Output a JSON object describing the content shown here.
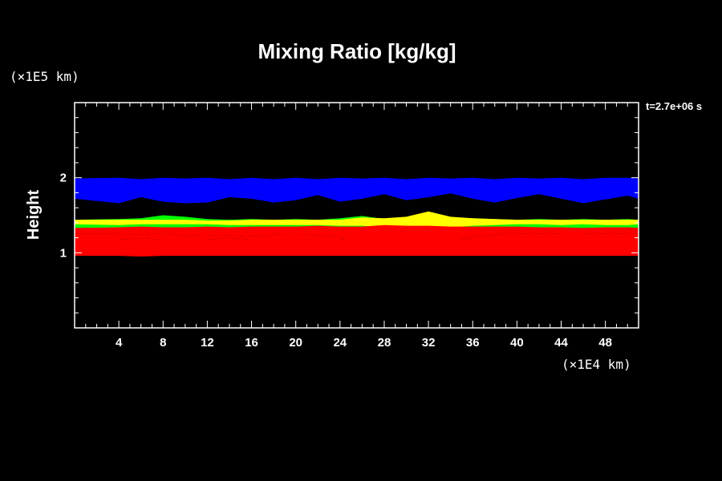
{
  "chart_data": {
    "type": "heatmap",
    "title": "Mixing Ratio [kg/kg]",
    "xlabel": "",
    "ylabel": "Height",
    "x_unit": "(×1E4 km)",
    "y_unit": "(×1E5 km)",
    "time_label": "t=2.7e+06 s",
    "xlim": [
      0,
      51
    ],
    "ylim": [
      0,
      3
    ],
    "x_ticks": [
      4,
      8,
      12,
      16,
      20,
      24,
      28,
      32,
      36,
      40,
      44,
      48
    ],
    "y_ticks": [
      1,
      2
    ],
    "x_minor_step": 1,
    "y_minor_step": 0.2,
    "colors": {
      "background": "#000000",
      "axes": "#ffffff",
      "blue": "#0000ff",
      "green": "#00ff00",
      "yellow": "#ffff00",
      "red": "#ff0000"
    },
    "bands": [
      {
        "color": "blue",
        "x": [
          0,
          4,
          6,
          8,
          10,
          12,
          14,
          16,
          18,
          20,
          22,
          24,
          26,
          28,
          30,
          32,
          34,
          36,
          38,
          40,
          42,
          44,
          46,
          48,
          50,
          51
        ],
        "top": [
          1.99,
          2.0,
          1.98,
          2.0,
          1.99,
          2.0,
          1.98,
          2.0,
          1.98,
          2.0,
          1.98,
          2.0,
          1.99,
          2.0,
          1.98,
          2.0,
          1.99,
          2.0,
          1.98,
          2.0,
          1.99,
          2.0,
          1.98,
          2.0,
          2.0,
          1.99
        ],
        "bottom": [
          1.72,
          1.66,
          1.74,
          1.68,
          1.66,
          1.67,
          1.74,
          1.72,
          1.67,
          1.7,
          1.77,
          1.68,
          1.72,
          1.78,
          1.7,
          1.74,
          1.79,
          1.72,
          1.67,
          1.73,
          1.78,
          1.72,
          1.66,
          1.71,
          1.76,
          1.72
        ]
      },
      {
        "color": "green",
        "x": [
          0,
          4,
          6,
          8,
          10,
          12,
          14,
          16,
          18,
          20,
          22,
          24,
          26,
          28,
          30,
          32,
          34,
          36,
          38,
          40,
          42,
          44,
          46,
          48,
          50,
          51
        ],
        "top": [
          1.44,
          1.45,
          1.46,
          1.5,
          1.48,
          1.45,
          1.44,
          1.45,
          1.44,
          1.45,
          1.44,
          1.46,
          1.49,
          1.45,
          1.47,
          1.5,
          1.46,
          1.46,
          1.45,
          1.44,
          1.45,
          1.44,
          1.45,
          1.44,
          1.45,
          1.44
        ],
        "bottom": [
          1.33,
          1.33,
          1.33,
          1.34,
          1.33,
          1.33,
          1.32,
          1.33,
          1.33,
          1.33,
          1.33,
          1.33,
          1.33,
          1.33,
          1.33,
          1.33,
          1.33,
          1.33,
          1.33,
          1.33,
          1.33,
          1.33,
          1.33,
          1.33,
          1.34,
          1.33
        ]
      },
      {
        "color": "yellow",
        "x": [
          0,
          4,
          6,
          8,
          10,
          12,
          14,
          16,
          18,
          20,
          22,
          24,
          26,
          28,
          30,
          32,
          34,
          36,
          38,
          40,
          42,
          44,
          46,
          48,
          50,
          51
        ],
        "top": [
          1.44,
          1.44,
          1.44,
          1.44,
          1.44,
          1.43,
          1.43,
          1.44,
          1.44,
          1.44,
          1.44,
          1.44,
          1.47,
          1.46,
          1.48,
          1.55,
          1.48,
          1.46,
          1.45,
          1.44,
          1.44,
          1.44,
          1.44,
          1.44,
          1.44,
          1.44
        ],
        "bottom": [
          1.38,
          1.37,
          1.38,
          1.38,
          1.38,
          1.38,
          1.37,
          1.37,
          1.37,
          1.37,
          1.37,
          1.36,
          1.36,
          1.34,
          1.34,
          1.33,
          1.34,
          1.36,
          1.37,
          1.38,
          1.38,
          1.37,
          1.38,
          1.37,
          1.37,
          1.38
        ]
      },
      {
        "color": "red",
        "x": [
          0,
          4,
          6,
          8,
          10,
          12,
          14,
          16,
          18,
          20,
          22,
          24,
          26,
          28,
          30,
          32,
          34,
          36,
          38,
          40,
          42,
          44,
          46,
          48,
          50,
          51
        ],
        "top": [
          1.33,
          1.34,
          1.35,
          1.34,
          1.34,
          1.35,
          1.34,
          1.35,
          1.35,
          1.35,
          1.36,
          1.35,
          1.35,
          1.37,
          1.36,
          1.36,
          1.35,
          1.35,
          1.35,
          1.35,
          1.34,
          1.34,
          1.33,
          1.34,
          1.34,
          1.33
        ],
        "bottom": [
          1.25,
          1.25,
          1.24,
          1.26,
          1.23,
          1.24,
          1.23,
          1.22,
          1.24,
          1.25,
          1.23,
          1.21,
          1.14,
          1.13,
          1.12,
          1.12,
          1.16,
          1.22,
          1.24,
          1.26,
          1.25,
          1.26,
          1.26,
          1.25,
          1.26,
          1.25
        ]
      },
      {
        "color": "red",
        "x": [
          0,
          4,
          6,
          8,
          10,
          12,
          14,
          16,
          18,
          20,
          22,
          24,
          26,
          28,
          30,
          32,
          34,
          36,
          38,
          40,
          42,
          44,
          46,
          48,
          50,
          51
        ],
        "top": [
          1.18,
          1.18,
          1.19,
          1.18,
          1.18,
          1.18,
          1.19,
          1.18,
          1.18,
          1.18,
          1.18,
          1.18,
          1.2,
          1.19,
          1.2,
          1.18,
          1.19,
          1.18,
          1.18,
          1.18,
          1.18,
          1.18,
          1.18,
          1.18,
          1.18,
          1.18
        ],
        "bottom": [
          0.96,
          0.96,
          0.95,
          0.96,
          0.96,
          0.96,
          0.96,
          0.96,
          0.96,
          0.96,
          0.96,
          0.96,
          0.96,
          0.96,
          0.96,
          0.96,
          0.96,
          0.96,
          0.96,
          0.96,
          0.96,
          0.96,
          0.96,
          0.96,
          0.96,
          0.96
        ]
      },
      {
        "color": "red",
        "x": [
          0,
          4,
          6,
          8,
          10,
          12,
          14,
          16,
          18,
          20,
          22,
          24,
          26,
          28,
          30,
          32,
          34,
          36,
          38,
          40,
          42,
          44,
          46,
          48,
          50,
          51
        ],
        "top": [
          1.25,
          1.25,
          1.24,
          1.26,
          1.23,
          1.24,
          1.23,
          1.22,
          1.24,
          1.25,
          1.23,
          1.21,
          1.14,
          1.13,
          1.12,
          1.12,
          1.16,
          1.22,
          1.24,
          1.26,
          1.25,
          1.26,
          1.26,
          1.25,
          1.26,
          1.25
        ],
        "bottom": [
          1.18,
          1.18,
          1.19,
          1.18,
          1.18,
          1.18,
          1.19,
          1.18,
          1.18,
          1.18,
          1.18,
          1.18,
          1.2,
          1.19,
          1.2,
          1.18,
          1.19,
          1.18,
          1.18,
          1.18,
          1.18,
          1.18,
          1.18,
          1.18,
          1.18,
          1.18
        ]
      }
    ]
  }
}
